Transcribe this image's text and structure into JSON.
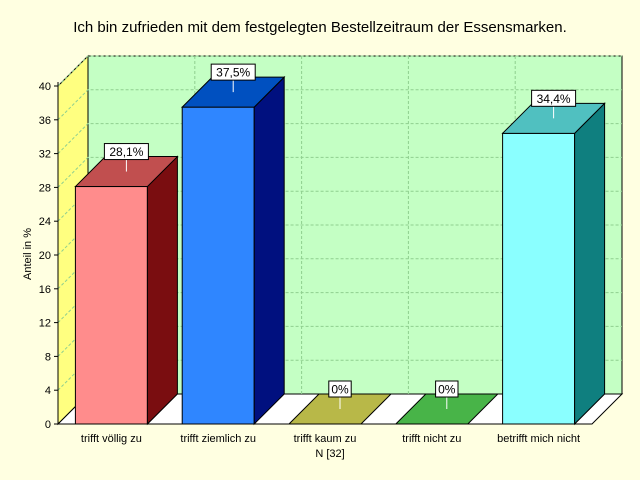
{
  "chart_data": {
    "type": "bar",
    "title": "Ich bin zufrieden mit dem festgelegten Bestellzeitraum der Essensmarken.",
    "xlabel": "",
    "ylabel": "Anteil in %",
    "n_label": "N [32]",
    "categories": [
      "trifft völlig zu",
      "trifft ziemlich zu",
      "trifft kaum zu",
      "trifft nicht zu",
      "betrifft mich nicht"
    ],
    "values": [
      28.1,
      37.5,
      0,
      0,
      34.4
    ],
    "value_labels": [
      "28,1%",
      "37,5%",
      "0%",
      "0%",
      "34,4%"
    ],
    "ylim": [
      0,
      40
    ],
    "yticks": [
      "0",
      "4",
      "8",
      "12",
      "16",
      "20",
      "24",
      "28",
      "32",
      "36",
      "40"
    ],
    "grid": true,
    "legend": "none",
    "colors": {
      "background": "#ffffe1",
      "plot_back": "#c4ffc4",
      "plot_side": "#ffff80",
      "gridline": "#8fcf8f",
      "bars": [
        {
          "front": "#ff8c8c",
          "side": "#7a0d10",
          "top": "#c14f4f"
        },
        {
          "front": "#2f86ff",
          "side": "#00107f",
          "top": "#0050c0"
        },
        {
          "front": "#c8c85a",
          "side": "#8f8f30",
          "top": "#b8b848"
        },
        {
          "front": "#4fc04f",
          "side": "#2a802a",
          "top": "#48b448"
        },
        {
          "front": "#8affff",
          "side": "#0f7f7f",
          "top": "#50c0c0"
        }
      ]
    }
  }
}
